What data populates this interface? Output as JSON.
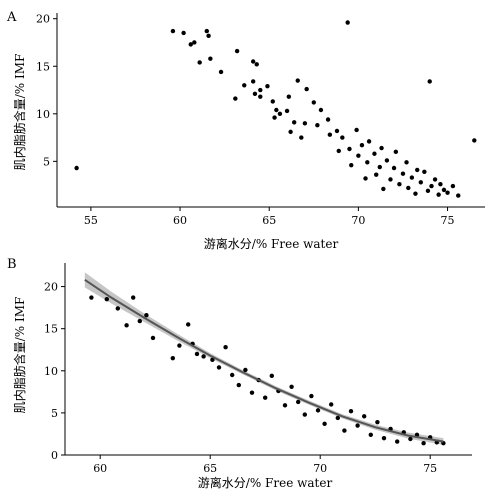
{
  "figure": {
    "panels": [
      "A",
      "B"
    ]
  },
  "chart_data": [
    {
      "panel": "A",
      "type": "scatter",
      "title": "",
      "xlabel": "游离水分/% Free water",
      "ylabel": "肌内脂肪含量/% IMF",
      "xlim": [
        53.1,
        77.1
      ],
      "ylim": [
        0.2,
        20.6
      ],
      "xticks": [
        55,
        60,
        65,
        70,
        75
      ],
      "yticks": [
        5,
        10,
        15,
        20
      ],
      "grid": false,
      "legend": "none",
      "point_color": "#000000",
      "points": [
        [
          54.2,
          4.3
        ],
        [
          59.6,
          18.7
        ],
        [
          60.2,
          18.5
        ],
        [
          60.6,
          17.3
        ],
        [
          60.8,
          17.5
        ],
        [
          61.5,
          18.7
        ],
        [
          61.6,
          18.2
        ],
        [
          61.1,
          15.4
        ],
        [
          61.7,
          15.8
        ],
        [
          62.3,
          14.4
        ],
        [
          63.2,
          16.6
        ],
        [
          63.1,
          11.6
        ],
        [
          63.6,
          13.0
        ],
        [
          64.1,
          15.5
        ],
        [
          64.3,
          15.2
        ],
        [
          64.1,
          13.4
        ],
        [
          64.5,
          12.5
        ],
        [
          64.2,
          12.1
        ],
        [
          64.5,
          11.8
        ],
        [
          64.9,
          12.9
        ],
        [
          65.2,
          11.3
        ],
        [
          65.4,
          10.4
        ],
        [
          65.3,
          9.6
        ],
        [
          65.6,
          10.0
        ],
        [
          66.0,
          10.3
        ],
        [
          66.4,
          9.1
        ],
        [
          66.1,
          11.8
        ],
        [
          66.6,
          13.5
        ],
        [
          66.2,
          8.1
        ],
        [
          66.8,
          7.5
        ],
        [
          67.0,
          9.0
        ],
        [
          67.5,
          11.2
        ],
        [
          67.1,
          12.6
        ],
        [
          67.7,
          8.8
        ],
        [
          67.9,
          10.4
        ],
        [
          68.4,
          7.8
        ],
        [
          68.3,
          9.4
        ],
        [
          68.8,
          8.2
        ],
        [
          68.9,
          6.1
        ],
        [
          69.1,
          7.5
        ],
        [
          69.4,
          19.6
        ],
        [
          69.5,
          6.3
        ],
        [
          69.6,
          4.6
        ],
        [
          69.9,
          8.3
        ],
        [
          70.0,
          5.6
        ],
        [
          70.2,
          6.7
        ],
        [
          70.4,
          3.2
        ],
        [
          70.5,
          4.9
        ],
        [
          70.6,
          7.1
        ],
        [
          70.9,
          5.8
        ],
        [
          71.0,
          3.6
        ],
        [
          71.2,
          4.4
        ],
        [
          71.3,
          6.4
        ],
        [
          71.4,
          2.1
        ],
        [
          71.6,
          5.1
        ],
        [
          71.8,
          3.1
        ],
        [
          72.0,
          4.3
        ],
        [
          72.1,
          6.0
        ],
        [
          72.3,
          2.6
        ],
        [
          72.5,
          3.7
        ],
        [
          72.7,
          4.9
        ],
        [
          72.8,
          2.2
        ],
        [
          73.0,
          3.3
        ],
        [
          73.2,
          1.6
        ],
        [
          73.3,
          4.1
        ],
        [
          73.5,
          2.8
        ],
        [
          73.7,
          3.9
        ],
        [
          73.9,
          1.9
        ],
        [
          74.0,
          13.4
        ],
        [
          74.1,
          2.4
        ],
        [
          74.3,
          3.1
        ],
        [
          74.5,
          1.5
        ],
        [
          74.6,
          2.6
        ],
        [
          74.8,
          2.0
        ],
        [
          75.0,
          1.7
        ],
        [
          75.3,
          2.4
        ],
        [
          75.6,
          1.4
        ],
        [
          76.5,
          7.2
        ]
      ]
    },
    {
      "panel": "B",
      "type": "scatter",
      "title": "",
      "xlabel": "游离水分/% Free water",
      "ylabel": "肌内脂肪含量/% IMF",
      "xlim": [
        58.4,
        76.9
      ],
      "ylim": [
        0,
        22.8
      ],
      "xticks": [
        60,
        65,
        70,
        75
      ],
      "yticks": [
        0,
        5,
        10,
        15,
        20
      ],
      "grid": false,
      "legend": "none",
      "point_color": "#000000",
      "fit_color": "#555555",
      "band_color": "#b3b3b3",
      "points": [
        [
          59.6,
          18.7
        ],
        [
          60.3,
          18.5
        ],
        [
          60.8,
          17.4
        ],
        [
          61.2,
          15.4
        ],
        [
          61.5,
          18.7
        ],
        [
          61.8,
          15.9
        ],
        [
          62.1,
          16.6
        ],
        [
          62.4,
          13.9
        ],
        [
          63.3,
          11.5
        ],
        [
          63.6,
          13.0
        ],
        [
          64.0,
          15.5
        ],
        [
          64.2,
          13.2
        ],
        [
          64.4,
          12.0
        ],
        [
          64.7,
          11.7
        ],
        [
          65.1,
          11.3
        ],
        [
          65.4,
          10.4
        ],
        [
          65.7,
          12.8
        ],
        [
          66.0,
          9.5
        ],
        [
          66.3,
          8.3
        ],
        [
          66.6,
          10.1
        ],
        [
          66.9,
          7.4
        ],
        [
          67.2,
          8.9
        ],
        [
          67.5,
          6.8
        ],
        [
          67.8,
          9.4
        ],
        [
          68.1,
          7.6
        ],
        [
          68.4,
          5.9
        ],
        [
          68.7,
          8.1
        ],
        [
          69.0,
          6.3
        ],
        [
          69.3,
          4.8
        ],
        [
          69.6,
          7.0
        ],
        [
          69.9,
          5.3
        ],
        [
          70.2,
          3.7
        ],
        [
          70.5,
          6.0
        ],
        [
          70.8,
          4.4
        ],
        [
          71.1,
          2.9
        ],
        [
          71.4,
          5.2
        ],
        [
          71.7,
          3.5
        ],
        [
          72.0,
          4.6
        ],
        [
          72.3,
          2.4
        ],
        [
          72.6,
          3.9
        ],
        [
          72.9,
          2.0
        ],
        [
          73.2,
          3.1
        ],
        [
          73.5,
          1.6
        ],
        [
          73.8,
          2.7
        ],
        [
          74.1,
          1.9
        ],
        [
          74.4,
          2.4
        ],
        [
          74.7,
          1.4
        ],
        [
          75.0,
          2.1
        ],
        [
          75.3,
          1.5
        ],
        [
          75.6,
          1.4
        ]
      ],
      "fit_line": {
        "x": [
          59.3,
          60.5,
          62.0,
          63.5,
          65.0,
          66.5,
          68.0,
          69.5,
          71.0,
          72.5,
          74.0,
          75.6
        ],
        "y": [
          20.8,
          18.7,
          16.3,
          14.0,
          11.8,
          9.8,
          7.9,
          6.2,
          4.6,
          3.3,
          2.3,
          1.6
        ],
        "band_halfwidth": [
          0.9,
          0.7,
          0.5,
          0.4,
          0.3,
          0.25,
          0.25,
          0.25,
          0.25,
          0.3,
          0.35,
          0.4
        ]
      }
    }
  ]
}
